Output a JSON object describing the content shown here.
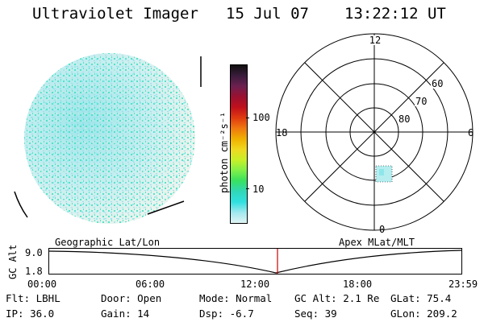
{
  "header": {
    "instrument": "Ultraviolet Imager",
    "date": "15 Jul 07",
    "time": "13:22:12 UT"
  },
  "colorbar": {
    "units_label": "photon cm⁻²s⁻¹",
    "ticks": [
      "100",
      "10"
    ],
    "colors": [
      "#101010",
      "#3a1c3c",
      "#6c2050",
      "#9a1030",
      "#c0101c",
      "#e03a10",
      "#f07810",
      "#f0b000",
      "#f0d820",
      "#c8f028",
      "#80f048",
      "#38e060",
      "#30d8b8",
      "#30e0e0",
      "#a0e8ee",
      "#e0f4f4"
    ]
  },
  "polar_plot": {
    "mlt_labels": {
      "top": "12",
      "left": "18",
      "right": "6",
      "bottom": "0"
    },
    "lat_labels": [
      "60",
      "70",
      "80"
    ]
  },
  "timeline": {
    "left_label": "Geographic Lat/Lon",
    "right_label": "Apex MLat/MLT",
    "axis_title": "GC Alt",
    "y_ticks": [
      "9.0",
      "1.8"
    ],
    "x_ticks": [
      "00:00",
      "06:00",
      "12:00",
      "18:00",
      "23:59"
    ],
    "marker_color": "#cc0000"
  },
  "info": {
    "flt": "Flt: LBHL",
    "ip": "IP: 36.0",
    "door": "Door: Open",
    "gain": "Gain: 14",
    "mode": "Mode: Normal",
    "dsp": "Dsp:    -6.7",
    "gcalt": "GC Alt: 2.1 Re",
    "seq": "Seq: 39",
    "glat": "GLat:  75.4",
    "glon": "GLon: 209.2"
  }
}
